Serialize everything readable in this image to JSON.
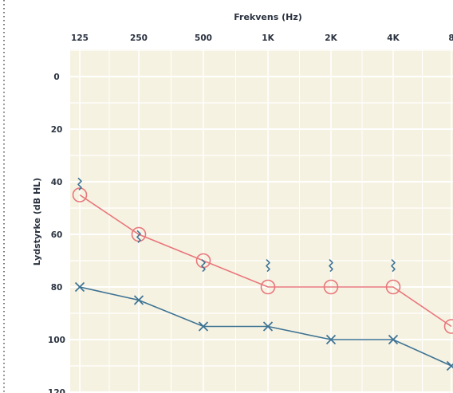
{
  "chart_data": {
    "type": "line",
    "title": "",
    "xlabel": "Frekvens (Hz)",
    "ylabel": "Lydstyrke (dB HL)",
    "x_tick_labels": [
      "125",
      "250",
      "500",
      "1K",
      "2K",
      "4K",
      "8"
    ],
    "y_tick_labels": [
      "0",
      "20",
      "40",
      "60",
      "80",
      "100",
      "120"
    ],
    "ylim": [
      0,
      120
    ],
    "y_inverted": true,
    "grid": true,
    "series": [
      {
        "marker": "circle",
        "color": "#e8767a",
        "values": [
          45,
          60,
          70,
          80,
          80,
          80,
          95
        ]
      },
      {
        "marker": "cross",
        "color": "#3d7393",
        "values": [
          80,
          85,
          95,
          95,
          100,
          100,
          110
        ]
      },
      {
        "marker": "bone-conduction-squiggle",
        "color": "#3d7393",
        "values": [
          41,
          61,
          72,
          72,
          72,
          72,
          null
        ]
      }
    ]
  },
  "colors": {
    "plot_background": "#f6f2e2",
    "grid_line": "#ffffff",
    "text": "#2b3340",
    "left_border": "#4a4a4a"
  }
}
